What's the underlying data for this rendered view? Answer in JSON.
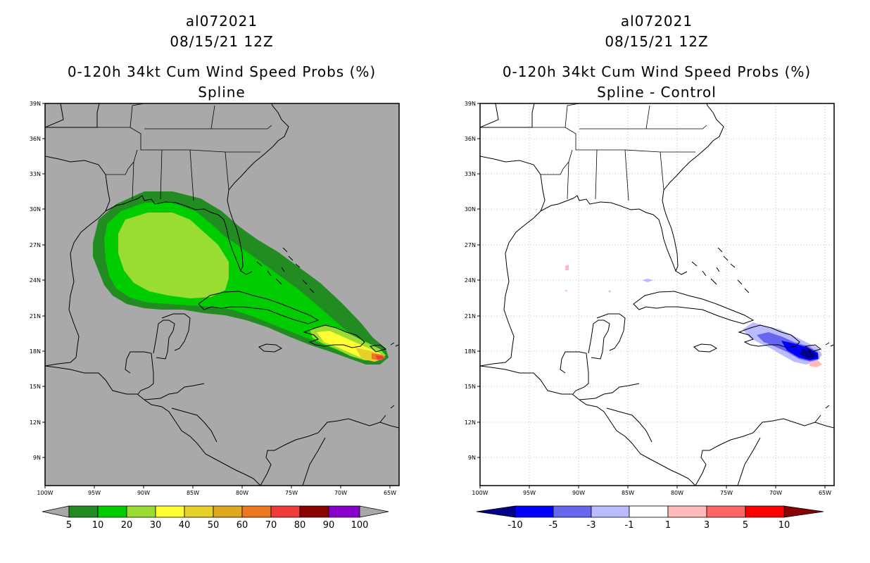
{
  "left_panel": {
    "storm_id": "al072021",
    "datetime": "08/15/21 12Z",
    "title": "0-120h 34kt Cum Wind Speed Probs (%)",
    "subtitle": "Spline",
    "lat_labels": [
      "39N",
      "36N",
      "33N",
      "30N",
      "27N",
      "24N",
      "21N",
      "18N",
      "15N",
      "12N",
      "9N"
    ],
    "lon_labels": [
      "100W",
      "95W",
      "90W",
      "85W",
      "80W",
      "75W",
      "70W",
      "65W"
    ],
    "colorbar": {
      "labels": [
        "5",
        "10",
        "20",
        "30",
        "40",
        "50",
        "60",
        "70",
        "80",
        "90",
        "100"
      ],
      "colors": [
        "#228b22",
        "#00cc00",
        "#99dd33",
        "#ffff33",
        "#e6d02a",
        "#e0a81e",
        "#ee7722",
        "#ee3c3c",
        "#8b0000",
        "#8800cc"
      ],
      "end_color": "#a8a8a8"
    },
    "background_color": "#a9a9a9"
  },
  "right_panel": {
    "storm_id": "al072021",
    "datetime": "08/15/21 12Z",
    "title": "0-120h 34kt Cum Wind Speed Probs (%)",
    "subtitle": "Spline - Control",
    "lat_labels": [
      "39N",
      "36N",
      "33N",
      "30N",
      "27N",
      "24N",
      "21N",
      "18N",
      "15N",
      "12N",
      "9N"
    ],
    "lon_labels": [
      "100W",
      "95W",
      "90W",
      "85W",
      "80W",
      "75W",
      "70W",
      "65W"
    ],
    "colorbar": {
      "labels": [
        "-10",
        "-5",
        "-3",
        "-1",
        "1",
        "3",
        "5",
        "10"
      ],
      "colors": [
        "#0000cc",
        "#0000ff",
        "#6666ee",
        "#bbbbff",
        "#ffffff",
        "#ffbbbb",
        "#ff6666",
        "#ff0000",
        "#f00000"
      ],
      "left_end_color": "#00008b",
      "right_end_color": "#8b0000"
    }
  }
}
